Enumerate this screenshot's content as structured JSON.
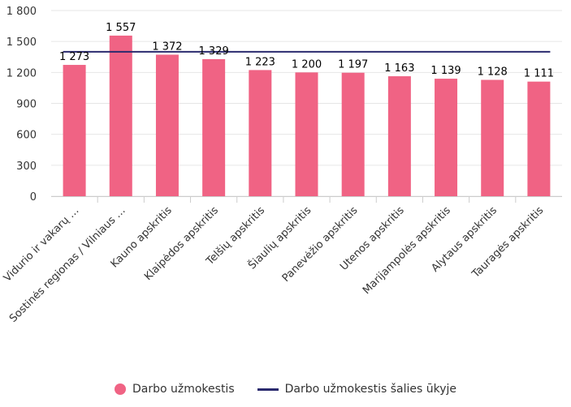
{
  "chart_data": {
    "type": "bar",
    "categories": [
      "Vidurio ir vakarų …",
      "Sostinės regionas / Vilniaus …",
      "Kauno apskritis",
      "Klaipėdos apskritis",
      "Telšių apskritis",
      "Šiaulių apskritis",
      "Panevėžio apskritis",
      "Utenos apskritis",
      "Marijampolės apskritis",
      "Alytaus apskritis",
      "Tauragės apskritis"
    ],
    "series": [
      {
        "name": "Darbo užmokestis",
        "type": "bar",
        "values": [
          1273,
          1557,
          1372,
          1329,
          1223,
          1200,
          1197,
          1163,
          1139,
          1128,
          1111
        ],
        "data_labels": [
          "1 273",
          "1 557",
          "1 372",
          "1 329",
          "1 223",
          "1 200",
          "1 197",
          "1 163",
          "1 139",
          "1 128",
          "1 111"
        ],
        "color": "#f06384"
      },
      {
        "name": "Darbo užmokestis šalies ūkyje",
        "type": "line",
        "value": 1400,
        "color": "#2a2a6e"
      }
    ],
    "ylim": [
      0,
      1800
    ],
    "yticks": [
      0,
      300,
      600,
      900,
      1200,
      1500,
      1800
    ],
    "ytick_labels": [
      "0",
      "300",
      "600",
      "900",
      "1 200",
      "1 500",
      "1 800"
    ],
    "grid": true,
    "legend_position": "bottom"
  }
}
